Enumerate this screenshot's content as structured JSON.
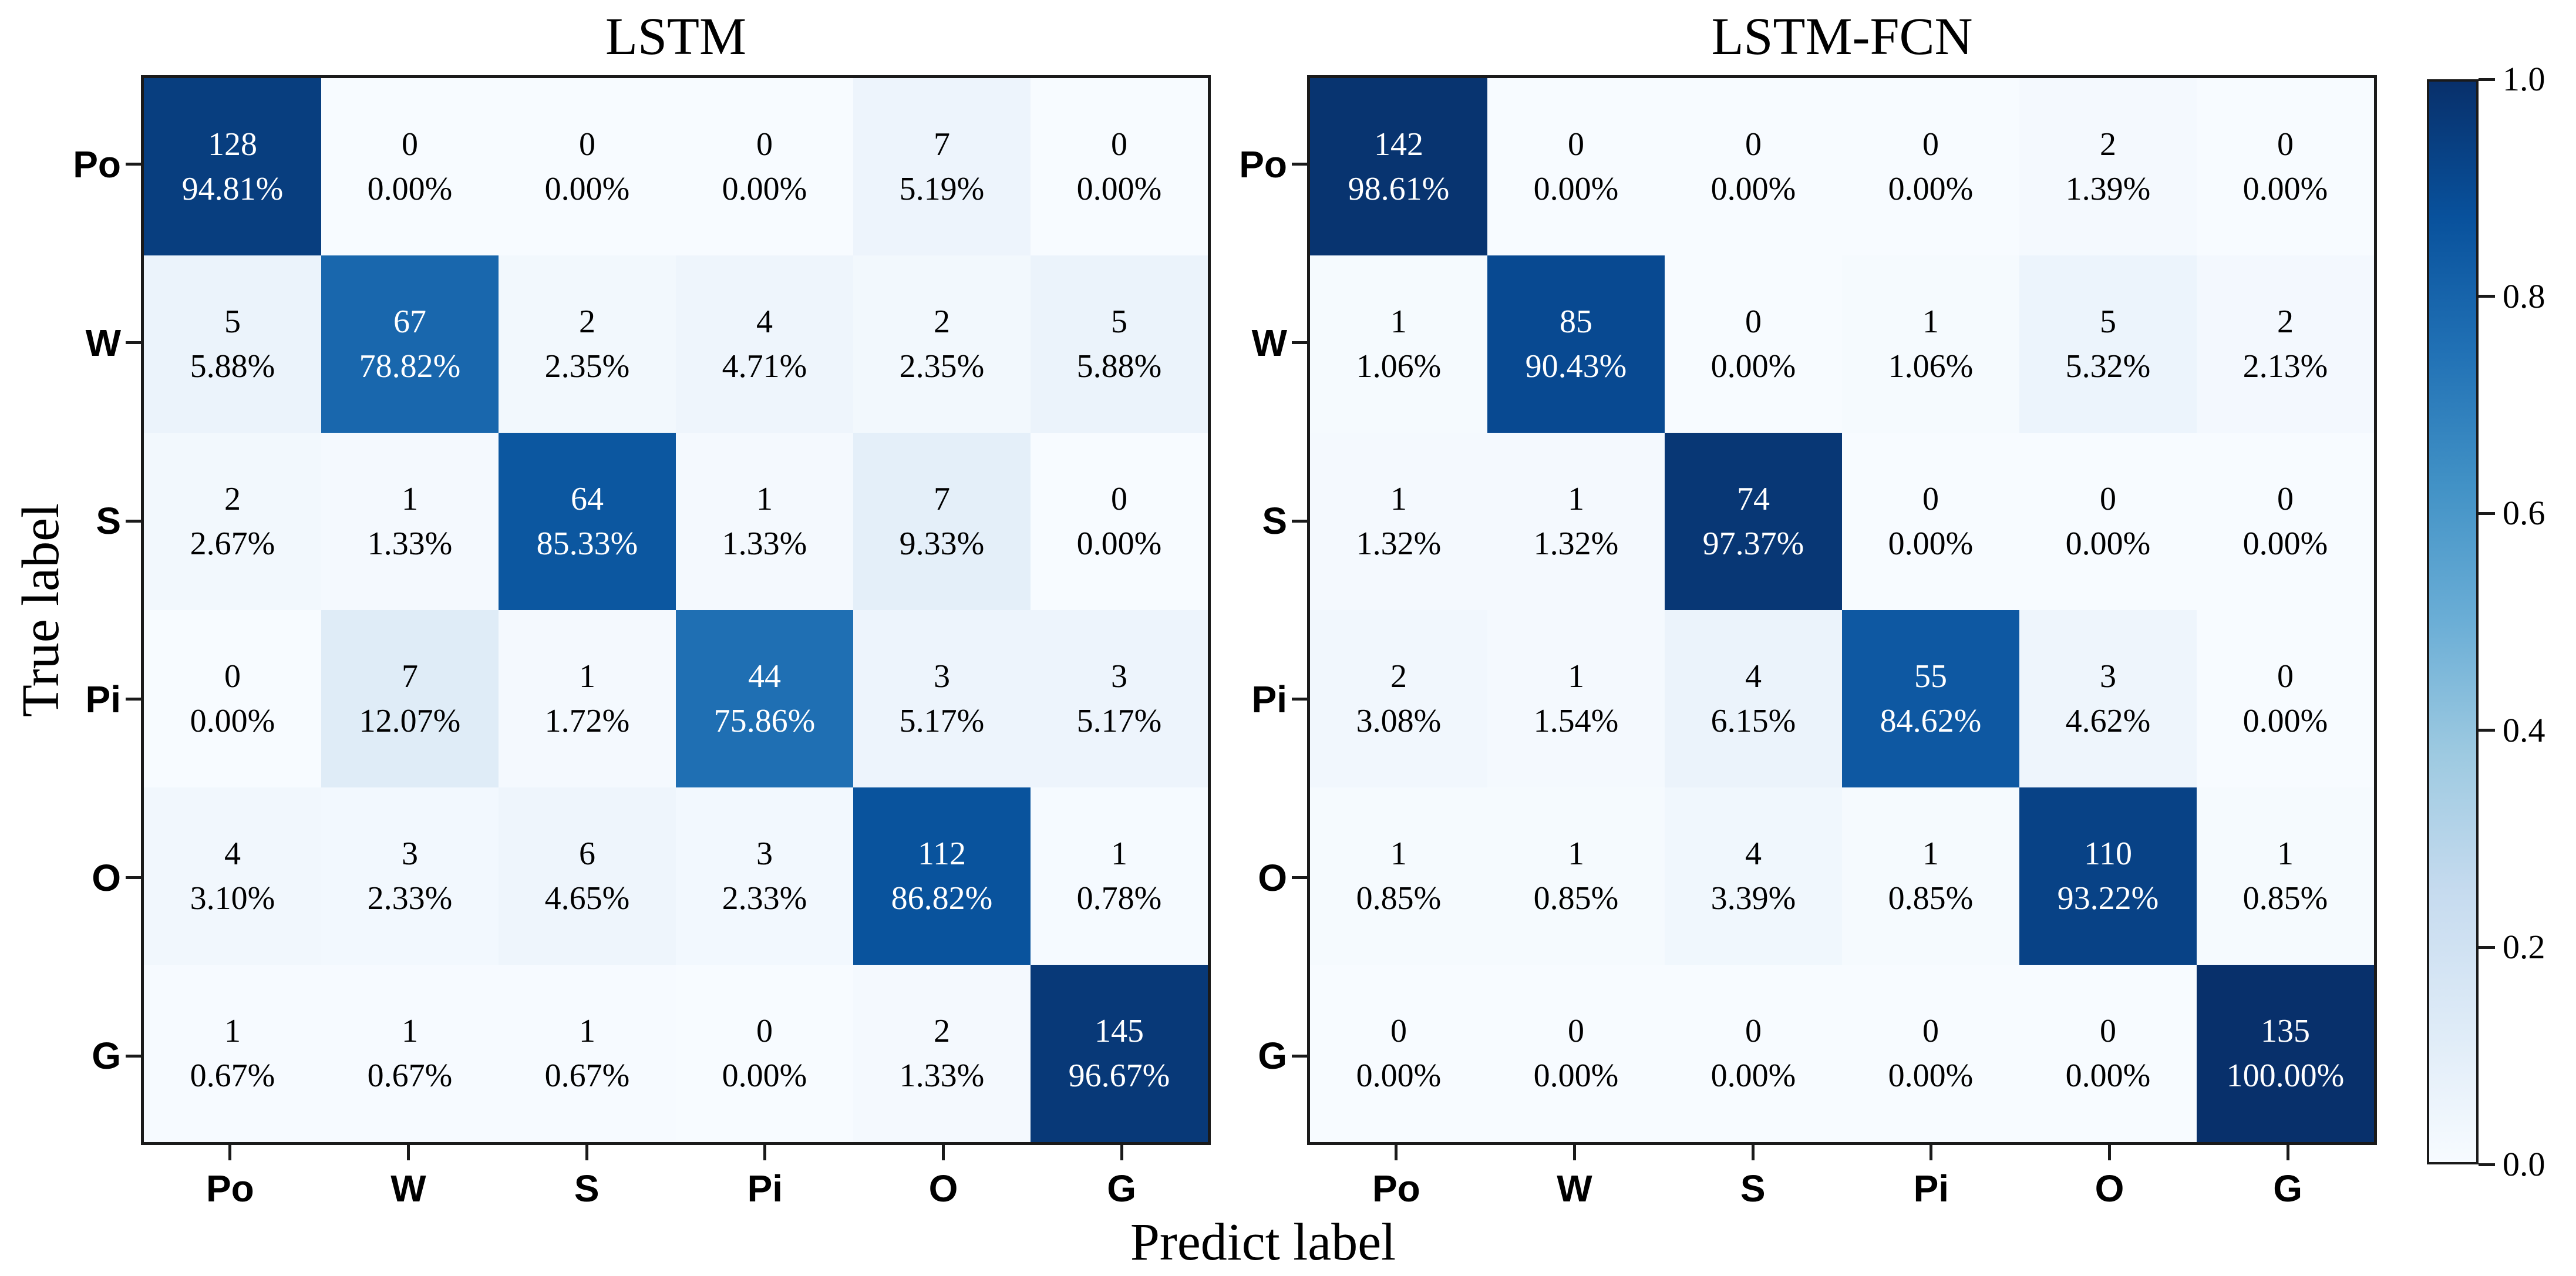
{
  "figure": {
    "xlabel": "Predict label",
    "ylabel": "True label",
    "background": "#ffffff",
    "spine_color": "#1a1a1a",
    "cell_text_color_light_bg": "#000000",
    "cell_text_color_dark_bg": "#ffffff",
    "colorbar": {
      "ticks": [
        "1.0",
        "0.8",
        "0.6",
        "0.4",
        "0.2",
        "0.0"
      ],
      "range": [
        0.0,
        1.0
      ],
      "colormap": "Blues",
      "colormap_colors": [
        "#f7fbff",
        "#deebf7",
        "#c6dbef",
        "#9ecae1",
        "#6baed6",
        "#4292c6",
        "#2171b5",
        "#08519c",
        "#08306b"
      ]
    }
  },
  "chart_data": [
    {
      "type": "heatmap",
      "title": "LSTM",
      "xlabel": "Predict label",
      "ylabel": "True label",
      "x_categories": [
        "Po",
        "W",
        "S",
        "Pi",
        "O",
        "G"
      ],
      "y_categories": [
        "Po",
        "W",
        "S",
        "Pi",
        "O",
        "G"
      ],
      "counts": [
        [
          128,
          0,
          0,
          0,
          7,
          0
        ],
        [
          5,
          67,
          2,
          4,
          2,
          5
        ],
        [
          2,
          1,
          64,
          1,
          7,
          0
        ],
        [
          0,
          7,
          1,
          44,
          3,
          3
        ],
        [
          4,
          3,
          6,
          3,
          112,
          1
        ],
        [
          1,
          1,
          1,
          0,
          2,
          145
        ]
      ],
      "row_percents": [
        [
          94.81,
          0.0,
          0.0,
          0.0,
          5.19,
          0.0
        ],
        [
          5.88,
          78.82,
          2.35,
          4.71,
          2.35,
          5.88
        ],
        [
          2.67,
          1.33,
          85.33,
          1.33,
          9.33,
          0.0
        ],
        [
          0.0,
          12.07,
          1.72,
          75.86,
          5.17,
          5.17
        ],
        [
          3.1,
          2.33,
          4.65,
          2.33,
          86.82,
          0.78
        ],
        [
          0.67,
          0.67,
          0.67,
          0.0,
          1.33,
          96.67
        ]
      ],
      "color_scale": "row_percent_divided_by_100",
      "legend_position": "shared-colorbar-right",
      "grid": false
    },
    {
      "type": "heatmap",
      "title": "LSTM-FCN",
      "xlabel": "Predict label",
      "ylabel": "True label",
      "x_categories": [
        "Po",
        "W",
        "S",
        "Pi",
        "O",
        "G"
      ],
      "y_categories": [
        "Po",
        "W",
        "S",
        "Pi",
        "O",
        "G"
      ],
      "counts": [
        [
          142,
          0,
          0,
          0,
          2,
          0
        ],
        [
          1,
          85,
          0,
          1,
          5,
          2
        ],
        [
          1,
          1,
          74,
          0,
          0,
          0
        ],
        [
          2,
          1,
          4,
          55,
          3,
          0
        ],
        [
          1,
          1,
          4,
          1,
          110,
          1
        ],
        [
          0,
          0,
          0,
          0,
          0,
          135
        ]
      ],
      "row_percents": [
        [
          98.61,
          0.0,
          0.0,
          0.0,
          1.39,
          0.0
        ],
        [
          1.06,
          90.43,
          0.0,
          1.06,
          5.32,
          2.13
        ],
        [
          1.32,
          1.32,
          97.37,
          0.0,
          0.0,
          0.0
        ],
        [
          3.08,
          1.54,
          6.15,
          84.62,
          4.62,
          0.0
        ],
        [
          0.85,
          0.85,
          3.39,
          0.85,
          93.22,
          0.85
        ],
        [
          0.0,
          0.0,
          0.0,
          0.0,
          0.0,
          100.0
        ]
      ],
      "color_scale": "row_percent_divided_by_100",
      "legend_position": "shared-colorbar-right",
      "grid": false
    }
  ]
}
